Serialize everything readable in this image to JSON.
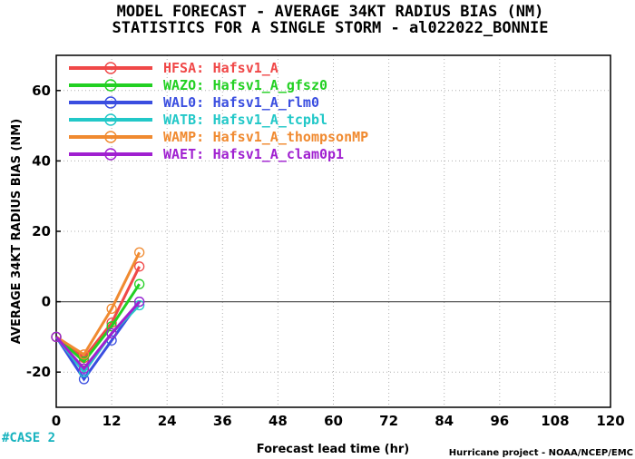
{
  "titles": [
    "MODEL FORECAST - AVERAGE 34KT RADIUS BIAS (NM)",
    "STATISTICS FOR A SINGLE STORM - al022022_BONNIE"
  ],
  "case_label": "#CASE  2",
  "footer": "Hurricane project - NOAA/NCEP/EMC",
  "chart_data": {
    "type": "line",
    "title": "MODEL FORECAST - AVERAGE 34KT RADIUS BIAS (NM)",
    "subtitle": "STATISTICS FOR A SINGLE STORM - al022022_BONNIE",
    "xlabel": "Forecast lead time (hr)",
    "ylabel": "AVERAGE 34KT RADIUS BIAS (NM)",
    "xlim": [
      0,
      120
    ],
    "ylim": [
      -30,
      70
    ],
    "xticks": [
      0,
      12,
      24,
      36,
      48,
      60,
      72,
      84,
      96,
      108,
      120
    ],
    "yticks": [
      -20,
      0,
      20,
      40,
      60
    ],
    "grid": true,
    "legend_position": "top-left",
    "series": [
      {
        "code": "HFSA:",
        "name": "Hafsv1_A",
        "color": "#f04848",
        "x": [
          0,
          6,
          12,
          18
        ],
        "values": [
          -10,
          -16,
          -6,
          10
        ]
      },
      {
        "code": "WAZO:",
        "name": "Hafsv1_A_gfsz0",
        "color": "#22d022",
        "x": [
          0,
          6,
          12,
          18
        ],
        "values": [
          -10,
          -17,
          -7,
          5
        ]
      },
      {
        "code": "WAL0:",
        "name": "Hafsv1_A_rlm0",
        "color": "#3a4ee0",
        "x": [
          0,
          6,
          12,
          18
        ],
        "values": [
          -10,
          -22,
          -11,
          0
        ]
      },
      {
        "code": "WATB:",
        "name": "Hafsv1_A_tcpbl",
        "color": "#22c8c8",
        "x": [
          0,
          6,
          12,
          18
        ],
        "values": [
          -10,
          -20,
          -9,
          -1
        ]
      },
      {
        "code": "WAMP:",
        "name": "Hafsv1_A_thompsonMP",
        "color": "#f08a30",
        "x": [
          0,
          6,
          12,
          18
        ],
        "values": [
          -10,
          -15,
          -2,
          14
        ]
      },
      {
        "code": "WAET:",
        "name": "Hafsv1_A_clam0p1",
        "color": "#a020d0",
        "x": [
          0,
          6,
          12,
          18
        ],
        "values": [
          -10,
          -19,
          -9,
          0
        ]
      }
    ]
  }
}
